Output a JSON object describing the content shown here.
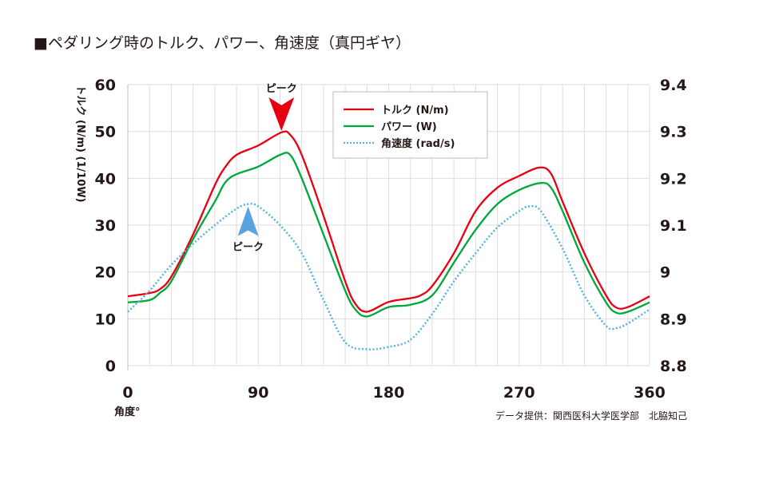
{
  "title": "■ペダリング時のトルク、パワー、角速度（真円ギヤ）",
  "credit": "データ提供：関西医科大学医学部　北脇知己",
  "chart_data": {
    "type": "line",
    "title": "ペダリング時のトルク、パワー、角速度（真円ギヤ）",
    "xlabel": "角度°",
    "ylabel": "トルク (N/m) (1/10W)",
    "xlim": [
      0,
      360
    ],
    "ylim": [
      0,
      60
    ],
    "y2lim": [
      8.8,
      9.4
    ],
    "xticks": [
      "0",
      "90",
      "180",
      "270",
      "360"
    ],
    "yticks": [
      "0",
      "10",
      "20",
      "30",
      "40",
      "50",
      "60"
    ],
    "y2ticks": [
      "8.8",
      "8.9",
      "9",
      "9.1",
      "9.2",
      "9.3",
      "9.4"
    ],
    "grid": true,
    "legend_position": "top-center",
    "annotations": [
      {
        "text": "ピーク",
        "x": 106,
        "series": "トルク (N/m)",
        "marker": "down-arrow",
        "color": "#e60012"
      },
      {
        "text": "ピーク",
        "x": 83,
        "series": "角速度 (rad/s)",
        "marker": "up-arrow",
        "color": "#5ba3dc"
      }
    ],
    "series": [
      {
        "name": "トルク (N/m)",
        "axis": "left",
        "color": "#e60012",
        "style": "solid",
        "x": [
          0,
          15,
          22,
          30,
          45,
          60,
          67,
          75,
          90,
          106,
          112,
          120,
          135,
          150,
          157,
          165,
          180,
          195,
          202,
          210,
          225,
          240,
          255,
          270,
          284,
          292,
          300,
          315,
          330,
          337,
          345,
          360
        ],
        "y": [
          14.8,
          15.5,
          16.3,
          19,
          28,
          38.5,
          42.3,
          45,
          47,
          49.8,
          49.3,
          45,
          32,
          18,
          13.2,
          11.5,
          13.6,
          14.4,
          15,
          17,
          24,
          33,
          38,
          40.5,
          42.3,
          41,
          35,
          24,
          15,
          12.4,
          12.5,
          14.8
        ]
      },
      {
        "name": "パワー (W)",
        "axis": "left",
        "color": "#00a73c",
        "style": "solid",
        "x": [
          0,
          15,
          22,
          30,
          45,
          60,
          70,
          90,
          105,
          112,
          120,
          135,
          150,
          157,
          165,
          180,
          195,
          210,
          225,
          240,
          255,
          270,
          285,
          292,
          300,
          315,
          330,
          337,
          345,
          360
        ],
        "y": [
          13.5,
          14,
          15.5,
          18,
          27,
          35,
          40,
          42.5,
          45,
          45,
          40,
          28,
          16,
          12,
          10.5,
          12.5,
          13,
          15,
          22,
          29,
          34.5,
          37.5,
          39,
          38,
          33,
          22,
          13.5,
          11.3,
          11.5,
          13.5
        ]
      },
      {
        "name": "角速度 (rad/s)",
        "axis": "right",
        "color": "#5bb0e0",
        "style": "dotted",
        "x": [
          0,
          15,
          30,
          45,
          60,
          75,
          83,
          90,
          105,
          120,
          135,
          150,
          165,
          180,
          195,
          210,
          225,
          240,
          255,
          270,
          277,
          285,
          300,
          315,
          330,
          337,
          345,
          360
        ],
        "y": [
          8.915,
          8.96,
          9.015,
          9.06,
          9.1,
          9.135,
          9.145,
          9.14,
          9.1,
          9.04,
          8.94,
          8.85,
          8.835,
          8.84,
          8.855,
          8.91,
          8.98,
          9.04,
          9.095,
          9.13,
          9.14,
          9.13,
          9.05,
          8.95,
          8.885,
          8.88,
          8.89,
          8.92
        ]
      }
    ]
  }
}
